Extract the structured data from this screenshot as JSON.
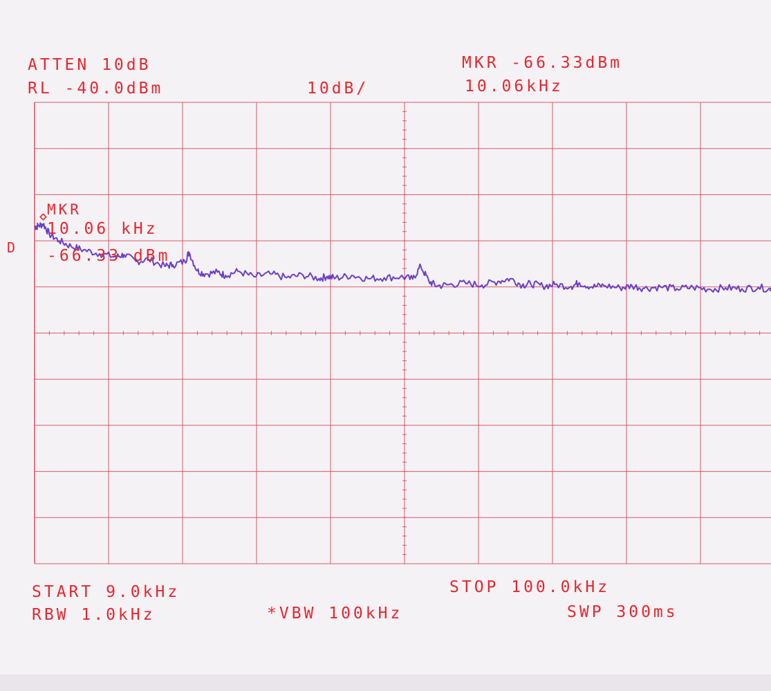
{
  "header": {
    "atten": "ATTEN 10dB",
    "ref_level": "RL -40.0dBm",
    "scale": "10dB/",
    "marker_level": "MKR -66.33dBm",
    "marker_freq": "10.06kHz"
  },
  "marker_annotation": {
    "label": "MKR",
    "freq": "10.06 kHz",
    "level": "-66.33 dBm"
  },
  "detector_mark": "D",
  "footer": {
    "start": "START 9.0kHz",
    "stop": "STOP 100.0kHz",
    "rbw": "RBW 1.0kHz",
    "vbw": "*VBW 100kHz",
    "sweep": "SWP 300ms"
  },
  "colors": {
    "annotation": "#e8262c",
    "grid": "#d85a66",
    "trace": "#6a3fc8",
    "paper": "#f5f2f6"
  },
  "chart_data": {
    "type": "line",
    "title": "",
    "xlabel": "",
    "ylabel": "",
    "x_unit": "kHz",
    "y_unit": "dBm",
    "xlim": [
      9.0,
      100.0
    ],
    "ylim": [
      -140.0,
      -40.0
    ],
    "grid": true,
    "marker": {
      "x": 10.06,
      "y": -66.33
    },
    "series": [
      {
        "x": [
          9.0,
          9.4,
          10.06,
          10.8,
          12.0,
          13.5,
          15.0,
          17.0,
          19.0,
          20.0,
          21.5,
          23.0,
          25.0,
          26.0,
          27.5,
          28.0,
          29.0,
          30.0,
          31.5,
          32.5,
          34.0,
          36.0,
          38.0,
          40.0,
          42.0,
          44.0,
          45.0,
          46.0,
          48.0,
          50.0,
          52.0,
          54.0,
          55.5,
          56.5,
          57.5,
          58.5,
          60.0,
          62.0,
          64.0,
          66.0,
          67.5,
          69.0,
          70.0,
          71.5,
          73.0,
          75.0,
          76.0,
          77.5,
          79.0,
          81.0,
          82.5,
          84.0,
          86.0,
          88.0,
          90.0,
          92.0,
          94.0,
          96.0,
          98.0,
          100.0
        ],
        "y": [
          -67.0,
          -66.8,
          -66.33,
          -68.5,
          -70.0,
          -71.2,
          -72.0,
          -72.8,
          -73.5,
          -73.0,
          -74.5,
          -74.0,
          -75.5,
          -75.2,
          -74.5,
          -72.5,
          -76.5,
          -77.2,
          -76.8,
          -77.5,
          -76.6,
          -77.8,
          -77.2,
          -78.0,
          -77.4,
          -78.2,
          -77.7,
          -78.1,
          -77.5,
          -78.2,
          -78.0,
          -77.8,
          -78.3,
          -75.5,
          -78.8,
          -79.8,
          -79.5,
          -79.2,
          -79.6,
          -78.8,
          -78.2,
          -79.6,
          -79.3,
          -79.8,
          -79.5,
          -79.9,
          -79.1,
          -80.0,
          -79.7,
          -80.2,
          -79.8,
          -80.3,
          -80.0,
          -80.4,
          -80.1,
          -80.5,
          -80.2,
          -80.4,
          -80.1,
          -80.6
        ]
      }
    ]
  }
}
